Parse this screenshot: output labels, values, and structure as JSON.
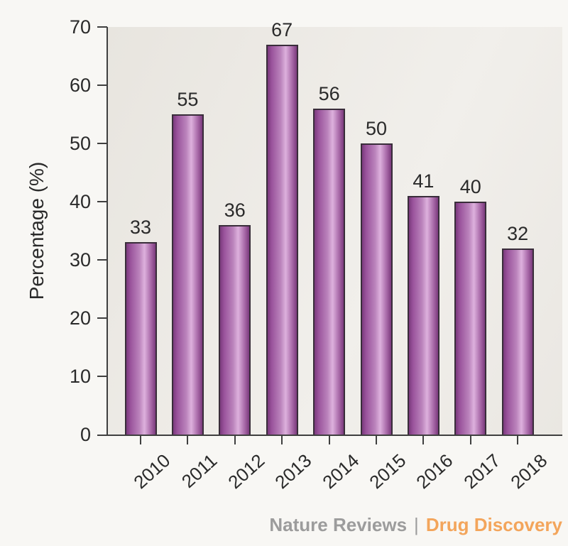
{
  "chart_data": {
    "type": "bar",
    "title": "",
    "categories": [
      "2010",
      "2011",
      "2012",
      "2013",
      "2014",
      "2015",
      "2016",
      "2017",
      "2018"
    ],
    "values": [
      33,
      55,
      36,
      67,
      56,
      50,
      41,
      40,
      32
    ],
    "xlabel": "",
    "ylabel": "Percentage (%)",
    "ylim": [
      0,
      70
    ],
    "yticks": [
      0,
      10,
      20,
      30,
      40,
      50,
      60,
      70
    ],
    "bar_labels_shown": true,
    "grid": false,
    "legend": null,
    "colors": {
      "bar_edge": "#7b3a7d",
      "bar_highlight": "#ddb1dd",
      "bar_outline": "#392d3a",
      "axis": "#3f3f3f",
      "text": "#2a2a2a",
      "plot_background": "#e8e5df",
      "page_background": "#f8f7f4"
    }
  },
  "footer": {
    "journal": "Nature Reviews",
    "separator": "|",
    "publication": "Drug Discovery",
    "journal_color": "#9c9c9c",
    "publication_color": "#f3a55b"
  }
}
